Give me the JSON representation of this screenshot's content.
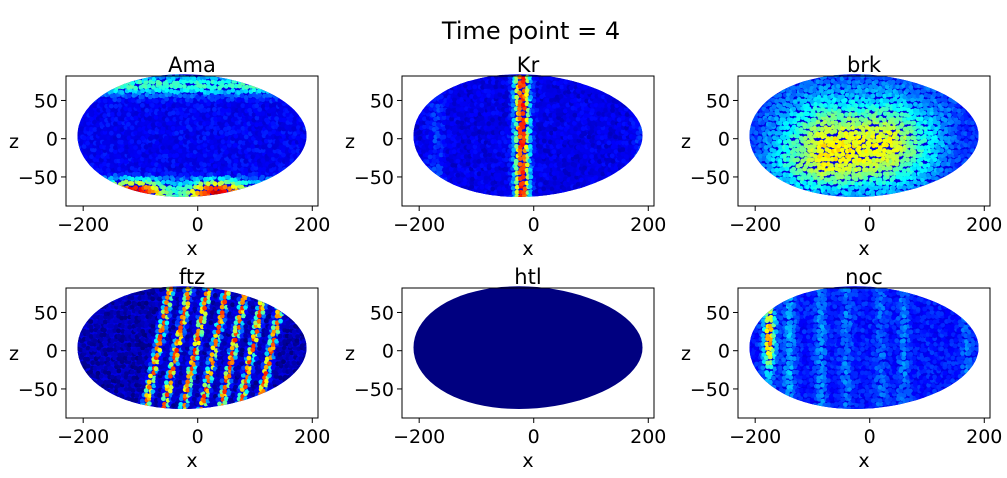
{
  "suptitle": "Time point = 4",
  "chart_data": [
    {
      "type": "scatter",
      "title": "Ama",
      "xlabel": "x",
      "ylabel": "z",
      "xlim": [
        -230,
        210
      ],
      "ylim": [
        -88,
        82
      ],
      "xticks": [
        -200,
        0,
        200
      ],
      "xtick_labels": [
        "−200",
        "0",
        "200"
      ],
      "yticks": [
        50,
        0,
        -50
      ],
      "ytick_labels": [
        "50",
        "0",
        "−50"
      ],
      "colormap": "jet",
      "pattern": "ama",
      "description_values": {
        "dorsal_band_level": 0.4,
        "ventral_band_level": 0.8,
        "background_level": 0.12
      }
    },
    {
      "type": "scatter",
      "title": "Kr",
      "xlabel": "x",
      "ylabel": "z",
      "xlim": [
        -230,
        210
      ],
      "ylim": [
        -88,
        82
      ],
      "xticks": [
        -200,
        0,
        200
      ],
      "xtick_labels": [
        "−200",
        "0",
        "200"
      ],
      "yticks": [
        50,
        0,
        -50
      ],
      "ytick_labels": [
        "50",
        "0",
        "−50"
      ],
      "colormap": "jet",
      "pattern": "kr",
      "description_values": {
        "stripe_center_x": -20,
        "stripe_level": 0.85,
        "background_level": 0.1
      }
    },
    {
      "type": "scatter",
      "title": "brk",
      "xlabel": "x",
      "ylabel": "z",
      "xlim": [
        -230,
        210
      ],
      "ylim": [
        -88,
        82
      ],
      "xticks": [
        -200,
        0,
        200
      ],
      "xtick_labels": [
        "−200",
        "0",
        "200"
      ],
      "yticks": [
        50,
        0,
        -50
      ],
      "ytick_labels": [
        "50",
        "0",
        "−50"
      ],
      "colormap": "jet",
      "pattern": "brk",
      "description_values": {
        "ventral_domain_level": 0.6,
        "background_level": 0.15
      }
    },
    {
      "type": "scatter",
      "title": "ftz",
      "xlabel": "x",
      "ylabel": "z",
      "xlim": [
        -230,
        210
      ],
      "ylim": [
        -88,
        82
      ],
      "xticks": [
        -200,
        0,
        200
      ],
      "xtick_labels": [
        "−200",
        "0",
        "200"
      ],
      "yticks": [
        50,
        0,
        -50
      ],
      "ytick_labels": [
        "50",
        "0",
        "−50"
      ],
      "colormap": "jet",
      "pattern": "ftz",
      "description_values": {
        "stripe_count": 7,
        "stripe_level": 0.8,
        "background_level": 0.05
      }
    },
    {
      "type": "scatter",
      "title": "htl",
      "xlabel": "x",
      "ylabel": "z",
      "xlim": [
        -230,
        210
      ],
      "ylim": [
        -88,
        82
      ],
      "xticks": [
        -200,
        0,
        200
      ],
      "xtick_labels": [
        "−200",
        "0",
        "200"
      ],
      "yticks": [
        50,
        0,
        -50
      ],
      "ytick_labels": [
        "50",
        "0",
        "−50"
      ],
      "colormap": "jet",
      "pattern": "htl",
      "description_values": {
        "uniform_level": 0.0
      }
    },
    {
      "type": "scatter",
      "title": "noc",
      "xlabel": "x",
      "ylabel": "z",
      "xlim": [
        -230,
        210
      ],
      "ylim": [
        -88,
        82
      ],
      "xticks": [
        -200,
        0,
        200
      ],
      "xtick_labels": [
        "−200",
        "0",
        "200"
      ],
      "yticks": [
        50,
        0,
        -50
      ],
      "ytick_labels": [
        "50",
        "0",
        "−50"
      ],
      "colormap": "jet",
      "pattern": "noc",
      "description_values": {
        "anterior_stripe_x": -175,
        "anterior_stripe_level": 0.8,
        "background_level": 0.15
      }
    }
  ]
}
